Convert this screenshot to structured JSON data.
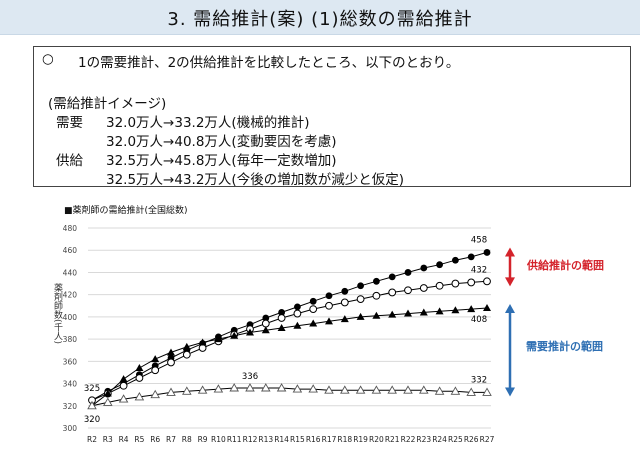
{
  "slide": {
    "title": "3. 需給推計(案) (1)総数の需給推計"
  },
  "summary": {
    "bullet": "○",
    "intro": "1の需要推計、2の供給推計を比較したところ、以下のとおり。",
    "heading": "(需給推計イメージ)",
    "demand_label": "需要",
    "supply_label": "供給",
    "demand_line1": "32.0万人→33.2万人(機械的推計)",
    "demand_line2": "32.0万人→40.8万人(変動要因を考慮)",
    "supply_line1": "32.5万人→45.8万人(毎年一定数増加)",
    "supply_line2": "32.5万人→43.2万人(今後の増加数が減少と仮定)"
  },
  "chart_label": "■薬剤師の需給推計(全国総数)",
  "side_labels": {
    "supply_range": "供給推計の範囲",
    "demand_range": "需要推計の範囲",
    "supply_color": "#d4232b",
    "demand_color": "#2e6fb3"
  },
  "chart_data": {
    "type": "line",
    "ylabel": "薬剤師数(千人)",
    "ylim": [
      300,
      480
    ],
    "yticks": [
      300,
      320,
      340,
      360,
      380,
      400,
      420,
      440,
      460,
      480
    ],
    "grid": true,
    "x": [
      "R2",
      "R3",
      "R4",
      "R5",
      "R6",
      "R7",
      "R8",
      "R9",
      "R10",
      "R11",
      "R12",
      "R13",
      "R14",
      "R15",
      "R16",
      "R17",
      "R18",
      "R19",
      "R20",
      "R21",
      "R22",
      "R23",
      "R24",
      "R25",
      "R26",
      "R27"
    ],
    "series": [
      {
        "marker": "filled-circle",
        "values": [
          325,
          333,
          340,
          348,
          356,
          363,
          370,
          376,
          382,
          388,
          393,
          399,
          404,
          409,
          414,
          419,
          423,
          428,
          432,
          436,
          440,
          444,
          447,
          451,
          454,
          458
        ]
      },
      {
        "marker": "open-circle",
        "values": [
          325,
          331,
          338,
          345,
          352,
          359,
          366,
          372,
          378,
          384,
          389,
          394,
          399,
          403,
          407,
          410,
          413,
          416,
          419,
          422,
          424,
          426,
          428,
          430,
          431,
          432
        ]
      },
      {
        "marker": "filled-triangle",
        "values": [
          320,
          331,
          344,
          354,
          362,
          368,
          373,
          377,
          380,
          383,
          386,
          388,
          390,
          392,
          394,
          396,
          398,
          400,
          401,
          402,
          403,
          404,
          405,
          406,
          407,
          408
        ]
      },
      {
        "marker": "open-triangle",
        "values": [
          320,
          323,
          326,
          328,
          330,
          332,
          333,
          334,
          335,
          336,
          336,
          336,
          336,
          335,
          335,
          334,
          334,
          334,
          334,
          334,
          334,
          334,
          333,
          333,
          332,
          332
        ]
      }
    ],
    "data_labels": [
      {
        "series": 0,
        "index": 0,
        "text": "325"
      },
      {
        "series": 3,
        "index": 0,
        "text": "320"
      },
      {
        "series": 3,
        "index": 10,
        "text": "336"
      },
      {
        "series": 3,
        "index": 25,
        "text": "332"
      },
      {
        "series": 0,
        "index": 25,
        "text": "458"
      },
      {
        "series": 1,
        "index": 25,
        "text": "432"
      },
      {
        "series": 2,
        "index": 25,
        "text": "408"
      }
    ]
  }
}
